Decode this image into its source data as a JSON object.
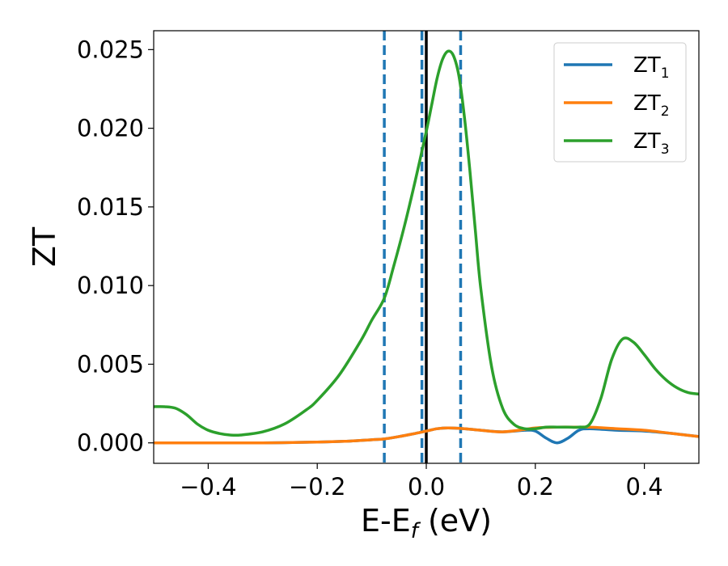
{
  "chart_data": {
    "type": "line",
    "xlabel": {
      "main": "E-E",
      "sub": "f",
      "unit": " (eV)"
    },
    "ylabel": "ZT",
    "xlim": [
      -0.5,
      0.5
    ],
    "ylim": [
      -0.0013,
      0.0262
    ],
    "xticks": [
      -0.4,
      -0.2,
      0.0,
      0.2,
      0.4
    ],
    "xtick_labels": [
      "−0.4",
      "−0.2",
      "0.0",
      "0.2",
      "0.4"
    ],
    "yticks": [
      0.0,
      0.005,
      0.01,
      0.015,
      0.02,
      0.025
    ],
    "ytick_labels": [
      "0.000",
      "0.005",
      "0.010",
      "0.015",
      "0.020",
      "0.025"
    ],
    "grid": false,
    "legend": {
      "position": "top-right"
    },
    "vertical_lines": [
      {
        "x": -0.077,
        "style": "dashed",
        "color": "#1f77b4"
      },
      {
        "x": -0.008,
        "style": "dashed",
        "color": "#1f77b4"
      },
      {
        "x": 0.063,
        "style": "dashed",
        "color": "#1f77b4"
      },
      {
        "x": 0.0,
        "style": "solid",
        "color": "#000000"
      }
    ],
    "series": [
      {
        "name": "ZT",
        "sub": "1",
        "color": "#1f77b4",
        "x": [
          -0.5,
          -0.4,
          -0.3,
          -0.2,
          -0.15,
          -0.1,
          -0.077,
          -0.05,
          -0.02,
          0.0,
          0.02,
          0.04,
          0.07,
          0.1,
          0.14,
          0.18,
          0.2,
          0.22,
          0.24,
          0.26,
          0.28,
          0.3,
          0.35,
          0.4,
          0.45,
          0.5
        ],
        "y": [
          0.0,
          0.0,
          0.0,
          5e-05,
          0.0001,
          0.0002,
          0.00025,
          0.0004,
          0.0006,
          0.00075,
          0.0009,
          0.00095,
          0.0009,
          0.0008,
          0.0007,
          0.0008,
          0.00075,
          0.0003,
          0.0,
          0.0003,
          0.0008,
          0.0009,
          0.0008,
          0.00075,
          0.0006,
          0.0004
        ]
      },
      {
        "name": "ZT",
        "sub": "2",
        "color": "#ff7f0e",
        "x": [
          -0.5,
          -0.4,
          -0.3,
          -0.2,
          -0.15,
          -0.1,
          -0.077,
          -0.05,
          -0.02,
          0.0,
          0.02,
          0.04,
          0.07,
          0.1,
          0.14,
          0.18,
          0.2,
          0.24,
          0.28,
          0.3,
          0.35,
          0.4,
          0.45,
          0.5
        ],
        "y": [
          0.0,
          0.0,
          0.0,
          5e-05,
          0.0001,
          0.0002,
          0.00025,
          0.0004,
          0.0006,
          0.00075,
          0.0009,
          0.00095,
          0.0009,
          0.0008,
          0.0007,
          0.00085,
          0.00095,
          0.001,
          0.001,
          0.001,
          0.0009,
          0.0008,
          0.0006,
          0.0004
        ]
      },
      {
        "name": "ZT",
        "sub": "3",
        "color": "#2ca02c",
        "x": [
          -0.5,
          -0.48,
          -0.46,
          -0.44,
          -0.42,
          -0.4,
          -0.38,
          -0.36,
          -0.34,
          -0.3,
          -0.26,
          -0.22,
          -0.2,
          -0.16,
          -0.12,
          -0.1,
          -0.077,
          -0.06,
          -0.04,
          -0.02,
          0.0,
          0.01,
          0.02,
          0.03,
          0.04,
          0.05,
          0.06,
          0.07,
          0.08,
          0.09,
          0.1,
          0.12,
          0.14,
          0.16,
          0.18,
          0.2,
          0.22,
          0.24,
          0.26,
          0.28,
          0.3,
          0.32,
          0.34,
          0.36,
          0.38,
          0.4,
          0.42,
          0.44,
          0.46,
          0.48,
          0.5
        ],
        "y": [
          0.0023,
          0.0023,
          0.0022,
          0.0018,
          0.0012,
          0.0008,
          0.0006,
          0.0005,
          0.0005,
          0.0007,
          0.0012,
          0.0021,
          0.0027,
          0.0043,
          0.0065,
          0.0078,
          0.0092,
          0.0112,
          0.0138,
          0.0167,
          0.0198,
          0.0215,
          0.0232,
          0.0244,
          0.0249,
          0.0246,
          0.0233,
          0.0207,
          0.0173,
          0.0135,
          0.0098,
          0.0048,
          0.0022,
          0.0012,
          0.0009,
          0.0009,
          0.001,
          0.001,
          0.001,
          0.001,
          0.0012,
          0.0028,
          0.0053,
          0.0066,
          0.0064,
          0.0056,
          0.0047,
          0.004,
          0.0035,
          0.0032,
          0.0031
        ]
      }
    ]
  }
}
